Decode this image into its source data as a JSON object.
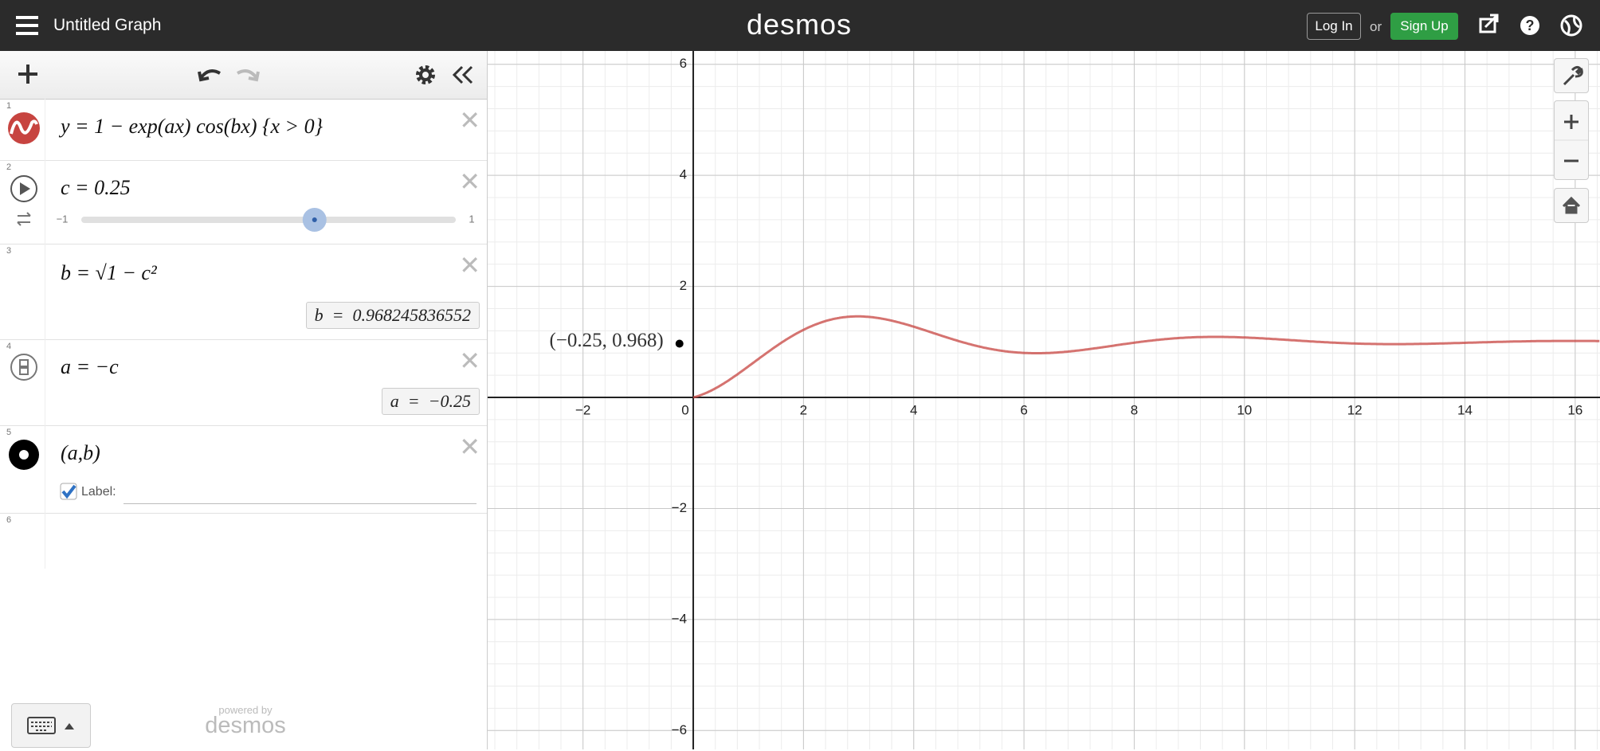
{
  "header": {
    "title": "Untitled Graph",
    "logo": "desmos",
    "login": "Log In",
    "or": "or",
    "signup": "Sign Up"
  },
  "expressions": [
    {
      "number": "1",
      "latex": "y = 1 − exp(ax) cos(bx) {x > 0}"
    },
    {
      "number": "2",
      "latex": "c = 0.25",
      "slider": {
        "min": {
          "value": -1,
          "label": "−1"
        },
        "max": 1,
        "value": 0.25
      }
    },
    {
      "number": "3",
      "latex": "b = √1 − c²",
      "result": "b  =  0.968245836552"
    },
    {
      "number": "4",
      "latex": "a = −c",
      "result": "a  =  −0.25"
    },
    {
      "number": "5",
      "latex": "(a,b)",
      "checkbox_label": "Label:"
    },
    {
      "number": "6"
    }
  ],
  "footer": {
    "powered_by": "powered by",
    "brand": "desmos"
  },
  "graph": {
    "xlim": [
      -3.73,
      16.45
    ],
    "ylim": [
      -6.34,
      6.24
    ],
    "xticks": [
      {
        "value": -2,
        "label": "−2"
      },
      0,
      2,
      4,
      6,
      8,
      10,
      12,
      14,
      16
    ],
    "yticks": [
      {
        "value": -6,
        "label": "−6"
      },
      {
        "value": -4,
        "label": "−4"
      },
      {
        "value": -2,
        "label": "−2"
      },
      2,
      4,
      6
    ],
    "minor_step": 0.4,
    "curve_color": "#c74440",
    "point": {
      "x": -0.25,
      "y": 0.968245836552,
      "label": "(−0.25, 0.968)"
    }
  }
}
